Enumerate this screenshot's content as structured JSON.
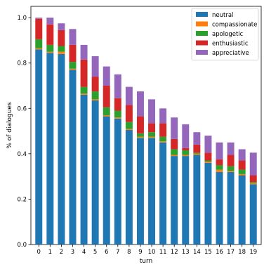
{
  "chart_data": {
    "type": "bar",
    "stacked": true,
    "xlabel": "turn",
    "ylabel": "% of dialogues",
    "ylim": [
      0,
      1.05
    ],
    "yticks": [
      "0.0",
      "0.2",
      "0.4",
      "0.6",
      "0.8",
      "1.0"
    ],
    "categories": [
      "0",
      "1",
      "2",
      "3",
      "4",
      "5",
      "6",
      "7",
      "8",
      "9",
      "10",
      "11",
      "12",
      "13",
      "14",
      "15",
      "16",
      "17",
      "18",
      "19"
    ],
    "legend_position": "top-right",
    "series": [
      {
        "name": "neutral",
        "color": "#1f77b4",
        "values": [
          0.86,
          0.845,
          0.84,
          0.77,
          0.66,
          0.635,
          0.565,
          0.555,
          0.505,
          0.47,
          0.47,
          0.45,
          0.39,
          0.39,
          0.395,
          0.36,
          0.32,
          0.32,
          0.305,
          0.265
        ]
      },
      {
        "name": "compassionate",
        "color": "#ff7f0e",
        "values": [
          0.005,
          0.005,
          0.01,
          0.005,
          0.005,
          0.005,
          0.005,
          0.005,
          0.005,
          0.005,
          0.005,
          0.005,
          0.005,
          0.005,
          0.005,
          0.005,
          0.01,
          0.005,
          0.005,
          0.005
        ]
      },
      {
        "name": "apologetic",
        "color": "#2ca02c",
        "values": [
          0.04,
          0.03,
          0.025,
          0.03,
          0.03,
          0.035,
          0.035,
          0.03,
          0.03,
          0.015,
          0.02,
          0.02,
          0.025,
          0.02,
          0.005,
          0.005,
          0.02,
          0.02,
          0.02,
          0.005
        ]
      },
      {
        "name": "enthusiastic",
        "color": "#d62728",
        "values": [
          0.09,
          0.09,
          0.07,
          0.075,
          0.12,
          0.065,
          0.095,
          0.055,
          0.075,
          0.075,
          0.04,
          0.06,
          0.045,
          0.01,
          0.035,
          0.035,
          0.025,
          0.05,
          0.04,
          0.03
        ]
      },
      {
        "name": "appreciative",
        "color": "#9467bd",
        "values": [
          0.005,
          0.03,
          0.03,
          0.07,
          0.065,
          0.09,
          0.085,
          0.105,
          0.08,
          0.11,
          0.105,
          0.065,
          0.095,
          0.105,
          0.055,
          0.075,
          0.075,
          0.055,
          0.05,
          0.1
        ]
      }
    ]
  }
}
